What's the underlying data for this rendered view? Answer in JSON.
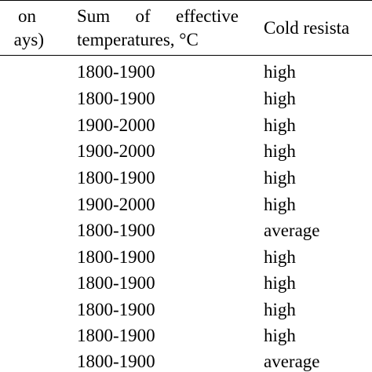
{
  "header": {
    "col1_line1": "on",
    "col1_line2": "ays)",
    "col2_line1": "Sum of effective",
    "col2_line2": "temperatures, °C",
    "col3": "Cold resista"
  },
  "rows": [
    {
      "sum": "1800-1900",
      "cold": "high"
    },
    {
      "sum": "1800-1900",
      "cold": "high"
    },
    {
      "sum": "1900-2000",
      "cold": "high"
    },
    {
      "sum": "1900-2000",
      "cold": "high"
    },
    {
      "sum": "1800-1900",
      "cold": "high"
    },
    {
      "sum": "1900-2000",
      "cold": "high"
    },
    {
      "sum": "1800-1900",
      "cold": "average"
    },
    {
      "sum": "1800-1900",
      "cold": "high"
    },
    {
      "sum": "1800-1900",
      "cold": "high"
    },
    {
      "sum": "1800-1900",
      "cold": "high"
    },
    {
      "sum": "1800-1900",
      "cold": "high"
    },
    {
      "sum": "1800-1900",
      "cold": "average"
    }
  ]
}
